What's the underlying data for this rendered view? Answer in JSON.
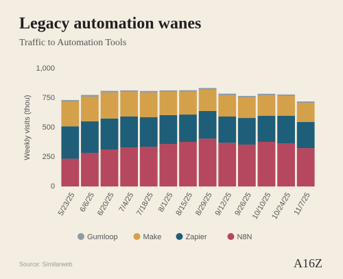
{
  "chart_data": {
    "type": "stacked_bar",
    "title": "Legacy automation wanes",
    "subtitle": "Traffic to Automation Tools",
    "y_label": "Weekly visits (thou)",
    "categories": [
      "5/23/25",
      "6/6/25",
      "6/20/25",
      "7/4/25",
      "7/18/25",
      "8/1/25",
      "8/15/25",
      "8/29/25",
      "9/12/25",
      "9/26/25",
      "10/10/25",
      "10/24/25",
      "11/7/25"
    ],
    "series": [
      {
        "name": "Gumloop",
        "color": "#8e9ba5",
        "values": [
          12,
          14,
          14,
          13,
          13,
          13,
          14,
          15,
          14,
          12,
          13,
          13,
          12
        ]
      },
      {
        "name": "Make",
        "color": "#d4a04a",
        "values": [
          211,
          210,
          221,
          209,
          210,
          197,
          192,
          180,
          180,
          175,
          174,
          168,
          162
        ]
      },
      {
        "name": "Zapier",
        "color": "#1e5e78",
        "values": [
          275,
          267,
          262,
          262,
          250,
          245,
          232,
          235,
          223,
          226,
          221,
          233,
          222
        ]
      },
      {
        "name": "N8N",
        "color": "#b5475e",
        "values": [
          235,
          285,
          314,
          331,
          337,
          360,
          378,
          405,
          370,
          355,
          378,
          366,
          325
        ]
      }
    ],
    "ylim": [
      0,
      1000
    ],
    "yticks": [
      0,
      250,
      500,
      750,
      {
        "value": 1000,
        "label": "1,000"
      }
    ],
    "source": "Source: Similarweb",
    "logo": "A16Z"
  }
}
